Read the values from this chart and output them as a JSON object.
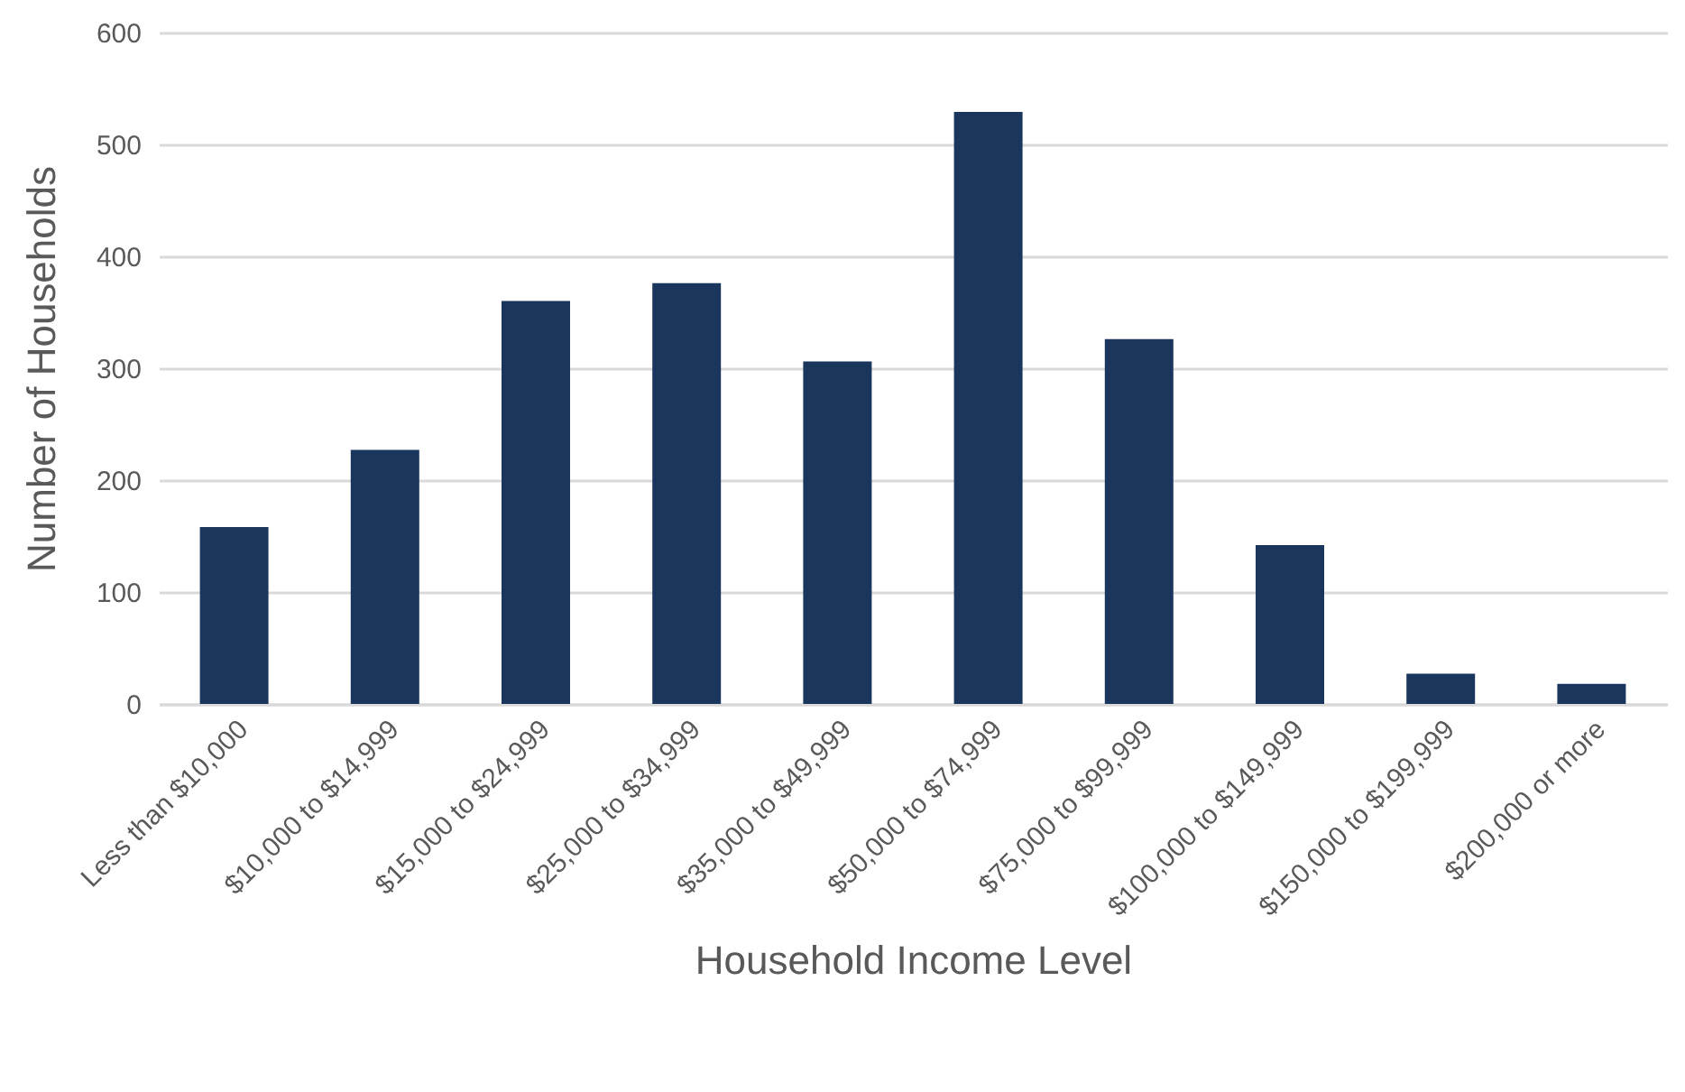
{
  "chart_data": {
    "type": "bar",
    "xlabel": "Household Income Level",
    "ylabel": "Number of Households",
    "categories": [
      "Less than $10,000",
      "$10,000 to $14,999",
      "$15,000 to $24,999",
      "$25,000 to $34,999",
      "$35,000 to $49,999",
      "$50,000 to $74,999",
      "$75,000 to $99,999",
      "$100,000 to $149,999",
      "$150,000 to $199,999",
      "$200,000 or more"
    ],
    "values": [
      158,
      227,
      360,
      376,
      306,
      529,
      326,
      142,
      27,
      18
    ],
    "color": "#1b365d",
    "ylim": [
      0,
      600
    ],
    "yticks": [
      0,
      100,
      200,
      300,
      400,
      500,
      600
    ],
    "grid": "y"
  }
}
